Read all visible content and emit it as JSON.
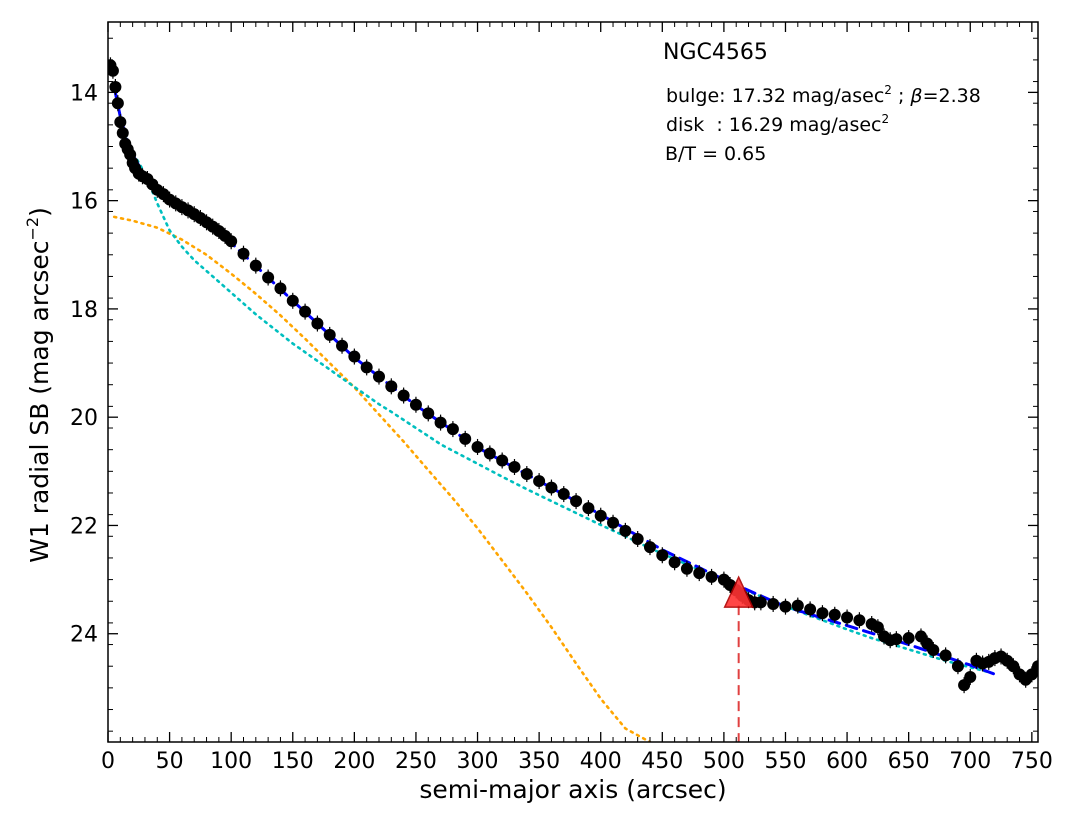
{
  "chart_data": {
    "type": "scatter",
    "title": "NGC4565",
    "xlabel": "semi-major axis (arcsec)",
    "ylabel": "W1 radial SB (mag arcsec",
    "ylabel_sup": "−2",
    "ylabel_close": ")",
    "xlim": [
      0,
      755
    ],
    "ylim": [
      26.0,
      12.7
    ],
    "y_inverted": true,
    "grid": false,
    "xticks": [
      0,
      50,
      100,
      150,
      200,
      250,
      300,
      350,
      400,
      450,
      500,
      550,
      600,
      650,
      700,
      750
    ],
    "yticks": [
      14,
      16,
      18,
      20,
      22,
      24
    ],
    "annotations": {
      "bulge": {
        "prefix": "bulge: 17.32 mag/asec",
        "sup": "2",
        "mid": " ; ",
        "beta": "β",
        "suffix": "=2.38"
      },
      "disk": {
        "prefix": "disk  : 16.29 mag/asec",
        "sup": "2"
      },
      "bt": "B/T = 0.65"
    },
    "marker_triangle": {
      "x": 512,
      "y": 23.25,
      "color": "#ff3333"
    },
    "colors": {
      "points": "#000000",
      "total_model": "#0000ff",
      "disk_model": "#00bfbf",
      "bulge_model": "#ffa500",
      "marker_line": "#e04040"
    },
    "series": [
      {
        "kind": "observed",
        "x": [
          2,
          4,
          6,
          8,
          10,
          12,
          14,
          16,
          18,
          20,
          22,
          25,
          28,
          32,
          36,
          40,
          45,
          50,
          55,
          60,
          65,
          70,
          75,
          80,
          85,
          90,
          95,
          100,
          110,
          120,
          130,
          140,
          150,
          160,
          170,
          180,
          190,
          200,
          210,
          220,
          230,
          240,
          250,
          260,
          270,
          280,
          290,
          300,
          310,
          320,
          330,
          340,
          350,
          360,
          370,
          380,
          390,
          400,
          410,
          420,
          430,
          440,
          450,
          460,
          470,
          480,
          490,
          500,
          505,
          510,
          515,
          520,
          525,
          530,
          540,
          550,
          560,
          570,
          580,
          590,
          600,
          610,
          620,
          625,
          630,
          635,
          640,
          650,
          660,
          665,
          670,
          680,
          690,
          695,
          700,
          705,
          710,
          715,
          720,
          725,
          730,
          735,
          740,
          745,
          750,
          755
        ],
        "y": [
          13.5,
          13.6,
          13.9,
          14.2,
          14.55,
          14.75,
          14.95,
          15.05,
          15.15,
          15.3,
          15.4,
          15.5,
          15.55,
          15.6,
          15.7,
          15.8,
          15.88,
          15.98,
          16.05,
          16.12,
          16.18,
          16.25,
          16.32,
          16.4,
          16.48,
          16.56,
          16.65,
          16.75,
          16.98,
          17.2,
          17.42,
          17.62,
          17.85,
          18.05,
          18.27,
          18.48,
          18.68,
          18.88,
          19.08,
          19.25,
          19.43,
          19.6,
          19.77,
          19.93,
          20.1,
          20.22,
          20.4,
          20.55,
          20.67,
          20.8,
          20.92,
          21.05,
          21.18,
          21.3,
          21.42,
          21.55,
          21.68,
          21.82,
          21.95,
          22.1,
          22.25,
          22.4,
          22.55,
          22.68,
          22.8,
          22.88,
          22.95,
          23.0,
          23.1,
          23.2,
          23.3,
          23.38,
          23.42,
          23.42,
          23.45,
          23.5,
          23.48,
          23.55,
          23.62,
          23.65,
          23.7,
          23.75,
          23.82,
          23.88,
          24.05,
          24.12,
          24.1,
          24.08,
          24.05,
          24.18,
          24.3,
          24.4,
          24.6,
          24.95,
          24.8,
          24.5,
          24.55,
          24.52,
          24.45,
          24.42,
          24.5,
          24.6,
          24.75,
          24.85,
          24.75,
          24.6
        ]
      },
      {
        "kind": "total_model",
        "x": [
          5,
          10,
          15,
          20,
          30,
          40,
          60,
          80,
          100,
          150,
          200,
          250,
          300,
          350,
          400,
          450,
          500,
          550,
          600,
          650,
          700,
          720
        ],
        "y": [
          13.9,
          14.45,
          14.85,
          15.15,
          15.55,
          15.82,
          16.15,
          16.45,
          16.78,
          17.85,
          18.9,
          19.78,
          20.56,
          21.18,
          21.8,
          22.45,
          23.0,
          23.5,
          23.85,
          24.2,
          24.58,
          24.75
        ]
      },
      {
        "kind": "disk_model",
        "x": [
          5,
          10,
          15,
          20,
          30,
          40,
          50,
          60,
          70,
          80,
          90,
          100,
          110,
          120,
          130,
          140,
          150,
          160,
          170,
          180,
          190,
          200,
          210,
          220,
          230,
          240,
          250,
          260,
          270,
          280,
          290,
          300,
          320,
          340,
          360,
          380,
          400,
          420,
          440,
          460,
          480,
          500,
          520,
          540,
          560,
          580,
          600,
          620,
          640,
          660,
          680,
          700,
          720
        ],
        "y": [
          13.9,
          14.45,
          14.85,
          15.1,
          15.5,
          16.05,
          16.55,
          16.85,
          17.1,
          17.3,
          17.5,
          17.7,
          17.9,
          18.1,
          18.28,
          18.46,
          18.64,
          18.8,
          18.96,
          19.12,
          19.28,
          19.44,
          19.6,
          19.76,
          19.9,
          20.05,
          20.2,
          20.35,
          20.5,
          20.62,
          20.74,
          20.86,
          21.1,
          21.33,
          21.55,
          21.77,
          21.99,
          22.2,
          22.42,
          22.62,
          22.82,
          23.02,
          23.22,
          23.4,
          23.58,
          23.75,
          23.92,
          24.08,
          24.22,
          24.36,
          24.5,
          24.62,
          24.74
        ]
      },
      {
        "kind": "bulge_model",
        "x": [
          5,
          20,
          40,
          60,
          80,
          100,
          120,
          140,
          160,
          180,
          200,
          220,
          240,
          260,
          280,
          300,
          320,
          340,
          360,
          380,
          400,
          420,
          440
        ],
        "y": [
          16.3,
          16.37,
          16.5,
          16.72,
          17.0,
          17.35,
          17.72,
          18.12,
          18.55,
          19.0,
          19.45,
          19.95,
          20.45,
          20.98,
          21.5,
          22.05,
          22.65,
          23.25,
          23.88,
          24.55,
          25.2,
          25.75,
          26.0
        ]
      }
    ]
  }
}
